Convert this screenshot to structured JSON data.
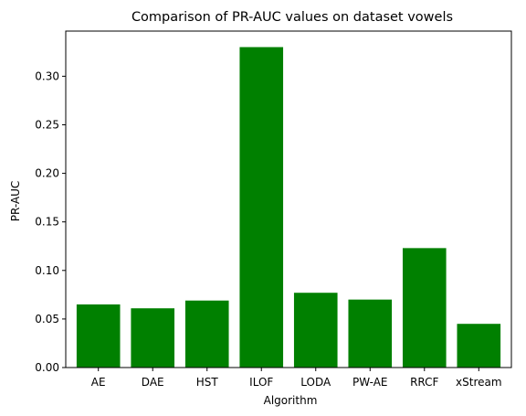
{
  "chart_data": {
    "type": "bar",
    "title": "Comparison of PR-AUC values on dataset vowels",
    "xlabel": "Algorithm",
    "ylabel": "PR-AUC",
    "categories": [
      "AE",
      "DAE",
      "HST",
      "ILOF",
      "LODA",
      "PW-AE",
      "RRCF",
      "xStream"
    ],
    "values": [
      0.065,
      0.061,
      0.069,
      0.33,
      0.077,
      0.07,
      0.123,
      0.045
    ],
    "ylim": [
      0,
      0.3465
    ],
    "yticks": [
      0.0,
      0.05,
      0.1,
      0.15,
      0.2,
      0.25,
      0.3
    ],
    "ytick_labels": [
      "0.00",
      "0.05",
      "0.10",
      "0.15",
      "0.20",
      "0.25",
      "0.30"
    ],
    "grid": false,
    "bar_color": "#008000"
  }
}
